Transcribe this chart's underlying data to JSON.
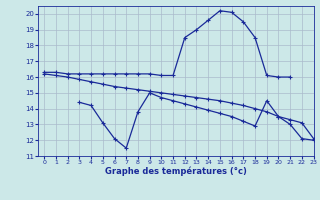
{
  "xlabel": "Graphe des températures (°c)",
  "bg_color": "#cce8e8",
  "grid_color": "#aabbcc",
  "line_color": "#1a2a99",
  "ylim": [
    11,
    20.5
  ],
  "xlim": [
    -0.5,
    23
  ],
  "yticks": [
    11,
    12,
    13,
    14,
    15,
    16,
    17,
    18,
    19,
    20
  ],
  "xticks": [
    0,
    1,
    2,
    3,
    4,
    5,
    6,
    7,
    8,
    9,
    10,
    11,
    12,
    13,
    14,
    15,
    16,
    17,
    18,
    19,
    20,
    21,
    22,
    23
  ],
  "series_max": {
    "x": [
      0,
      1,
      2,
      3,
      4,
      5,
      6,
      7,
      8,
      9,
      10,
      11,
      12,
      13,
      14,
      15,
      16,
      17,
      18,
      19,
      20,
      21
    ],
    "y": [
      16.3,
      16.3,
      16.2,
      16.2,
      16.2,
      16.2,
      16.2,
      16.2,
      16.2,
      16.2,
      16.1,
      16.1,
      18.5,
      19.0,
      19.6,
      20.2,
      20.1,
      19.5,
      18.5,
      16.1,
      16.0,
      16.0
    ]
  },
  "series_mid": {
    "x": [
      0,
      1,
      2,
      3,
      4,
      5,
      6,
      7,
      8,
      9,
      10,
      11,
      12,
      13,
      14,
      15,
      16,
      17,
      18,
      19,
      20,
      21,
      22,
      23
    ],
    "y": [
      16.2,
      16.1,
      16.0,
      15.85,
      15.7,
      15.55,
      15.4,
      15.3,
      15.2,
      15.1,
      15.0,
      14.9,
      14.8,
      14.7,
      14.6,
      14.5,
      14.35,
      14.2,
      14.0,
      13.8,
      13.5,
      13.3,
      13.1,
      12.1
    ]
  },
  "series_min": {
    "x": [
      3,
      4,
      5,
      6,
      7,
      8,
      9,
      10,
      11,
      12,
      13,
      14,
      15,
      16,
      17,
      18,
      19,
      20,
      21,
      22,
      23
    ],
    "y": [
      14.4,
      14.2,
      13.1,
      12.1,
      11.5,
      13.8,
      15.0,
      14.7,
      14.5,
      14.3,
      14.1,
      13.9,
      13.7,
      13.5,
      13.2,
      12.9,
      14.5,
      13.5,
      13.0,
      12.1,
      12.0
    ]
  }
}
